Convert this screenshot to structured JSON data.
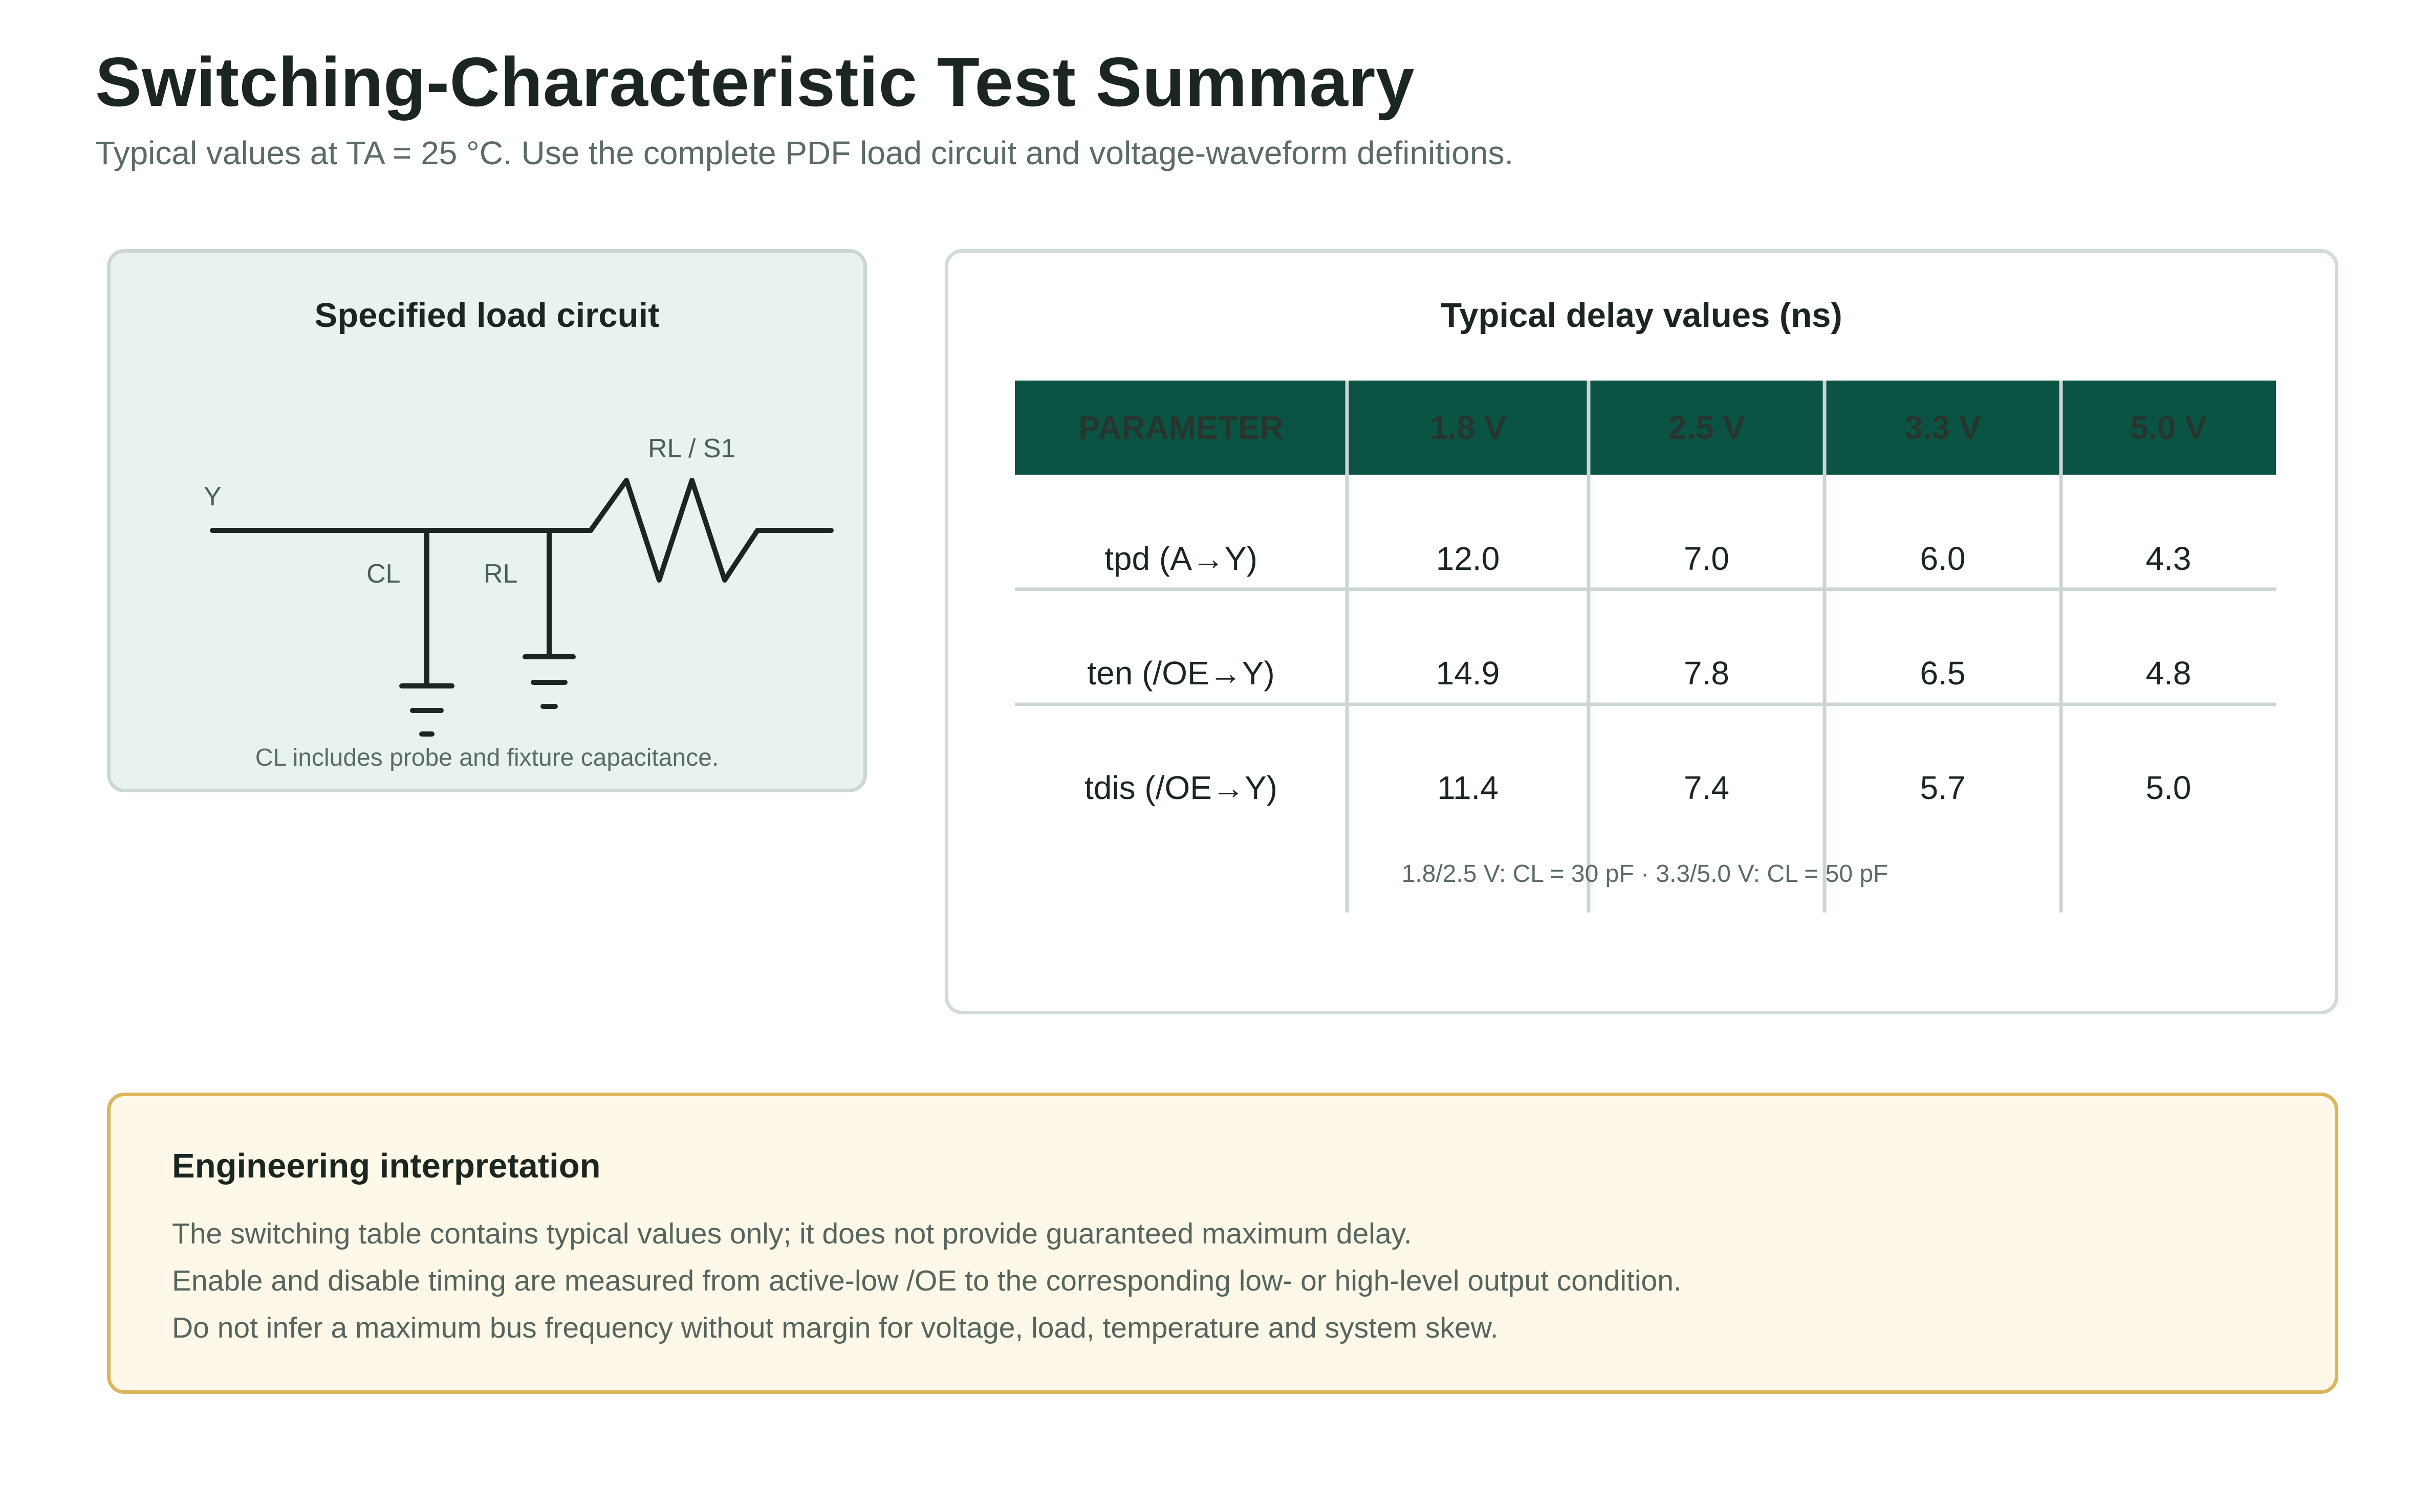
{
  "header": {
    "title": "Switching-Characteristic Test Summary",
    "subtitle": "Typical values at TA = 25 °C. Use the complete PDF load circuit and voltage-waveform definitions."
  },
  "circuit": {
    "title": "Specified load circuit",
    "labels": {
      "node": "Y",
      "capacitor": "CL",
      "resistor": "RL",
      "switch_resistor": "RL / S1"
    },
    "note": "CL includes probe and fixture capacitance."
  },
  "delay_table": {
    "title": "Typical delay values (ns)",
    "columns": [
      "PARAMETER",
      "1.8 V",
      "2.5 V",
      "3.3 V",
      "5.0 V"
    ],
    "rows": [
      [
        "tpd (A→Y)",
        "12.0",
        "7.0",
        "6.0",
        "4.3"
      ],
      [
        "ten (/OE→Y)",
        "14.9",
        "7.8",
        "6.5",
        "4.8"
      ],
      [
        "tdis (/OE→Y)",
        "11.4",
        "7.4",
        "5.7",
        "5.0"
      ]
    ],
    "note": "1.8/2.5 V: CL = 30 pF · 3.3/5.0 V: CL = 50 pF"
  },
  "interpretation": {
    "title": "Engineering interpretation",
    "lines": [
      "The switching table contains typical values only; it does not provide guaranteed maximum delay.",
      "Enable and disable timing are measured from active-low /OE to the corresponding low- or high-level output condition.",
      "Do not infer a maximum bus frequency without margin for voltage, load, temperature and system skew."
    ]
  },
  "colors": {
    "table_header_bg": "#0b5444",
    "table_header_text": "#26362e",
    "circuit_card_bg": "#e9f3ee",
    "note_card_bg": "#fdf8e8",
    "note_card_border": "#d9b65d"
  }
}
